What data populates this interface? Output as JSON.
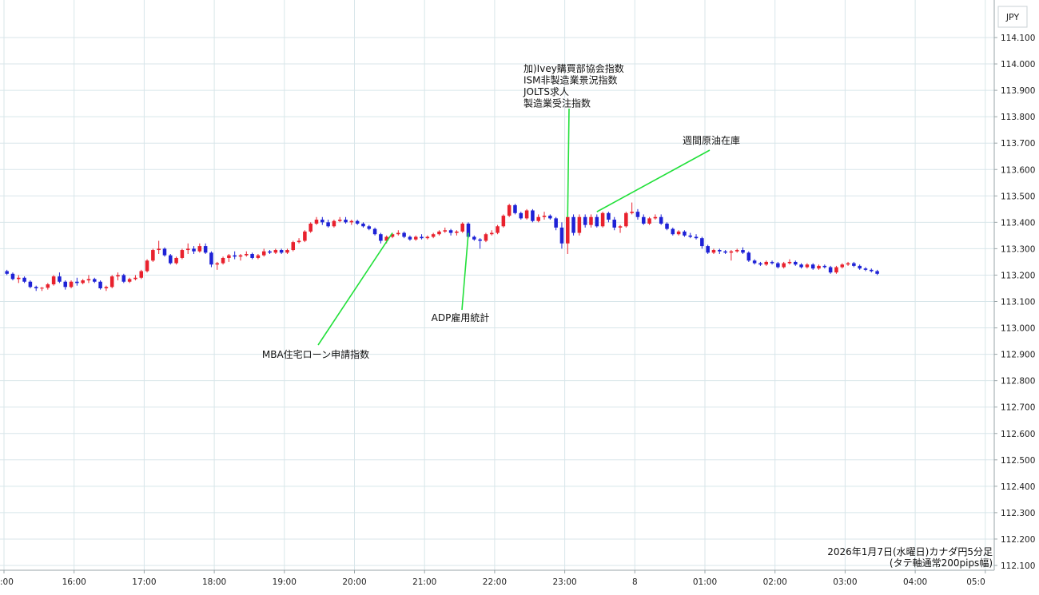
{
  "colors": {
    "up": "#e8212d",
    "down": "#1e22d6",
    "grid": "#d8e6ea",
    "annotation_line": "#22e03a"
  },
  "chart_data": {
    "type": "candlestick",
    "currency_label": "JPY",
    "info_lines": [
      "2026年1月7日(水曜日)カナダ円5分足",
      "(タテ軸通常200pips幅)"
    ],
    "ylim": [
      112.1,
      114.1
    ],
    "y_ticks": [
      "114.100",
      "114.000",
      "113.900",
      "113.800",
      "113.700",
      "113.600",
      "113.500",
      "113.400",
      "113.300",
      "113.200",
      "113.100",
      "113.000",
      "112.900",
      "112.800",
      "112.700",
      "112.600",
      "112.500",
      "112.400",
      "112.300",
      "112.200",
      "112.100"
    ],
    "x_ticks": [
      ":00",
      "16:00",
      "17:00",
      "18:00",
      "19:00",
      "20:00",
      "21:00",
      "22:00",
      "23:00",
      "8",
      "01:00",
      "02:00",
      "03:00",
      "04:00",
      "05:0"
    ],
    "candles": [
      [
        113.215,
        113.22,
        113.2,
        113.205
      ],
      [
        113.205,
        113.21,
        113.18,
        113.185
      ],
      [
        113.185,
        113.2,
        113.17,
        113.19
      ],
      [
        113.19,
        113.195,
        113.17,
        113.175
      ],
      [
        113.175,
        113.18,
        113.15,
        113.155
      ],
      [
        113.155,
        113.16,
        113.14,
        113.15
      ],
      [
        113.15,
        113.155,
        113.14,
        113.152
      ],
      [
        113.152,
        113.17,
        113.145,
        113.165
      ],
      [
        113.165,
        113.2,
        113.16,
        113.195
      ],
      [
        113.195,
        113.21,
        113.17,
        113.175
      ],
      [
        113.175,
        113.18,
        113.145,
        113.155
      ],
      [
        113.155,
        113.18,
        113.15,
        113.175
      ],
      [
        113.175,
        113.19,
        113.16,
        113.17
      ],
      [
        113.17,
        113.185,
        113.165,
        113.18
      ],
      [
        113.18,
        113.2,
        113.17,
        113.185
      ],
      [
        113.185,
        113.19,
        113.17,
        113.175
      ],
      [
        113.175,
        113.18,
        113.145,
        113.15
      ],
      [
        113.15,
        113.16,
        113.14,
        113.155
      ],
      [
        113.155,
        113.2,
        113.15,
        113.195
      ],
      [
        113.195,
        113.21,
        113.18,
        113.2
      ],
      [
        113.2,
        113.205,
        113.17,
        113.175
      ],
      [
        113.175,
        113.19,
        113.17,
        113.185
      ],
      [
        113.185,
        113.2,
        113.18,
        113.19
      ],
      [
        113.19,
        113.22,
        113.185,
        113.215
      ],
      [
        113.215,
        113.26,
        113.21,
        113.255
      ],
      [
        113.255,
        113.3,
        113.25,
        113.295
      ],
      [
        113.295,
        113.33,
        113.28,
        113.3
      ],
      [
        113.3,
        113.305,
        113.27,
        113.275
      ],
      [
        113.275,
        113.28,
        113.24,
        113.245
      ],
      [
        113.245,
        113.27,
        113.24,
        113.265
      ],
      [
        113.265,
        113.3,
        113.26,
        113.295
      ],
      [
        113.295,
        113.32,
        113.28,
        113.3
      ],
      [
        113.3,
        113.31,
        113.28,
        113.29
      ],
      [
        113.29,
        113.32,
        113.285,
        113.31
      ],
      [
        113.31,
        113.32,
        113.28,
        113.285
      ],
      [
        113.285,
        113.29,
        113.23,
        113.24
      ],
      [
        113.24,
        113.25,
        113.22,
        113.245
      ],
      [
        113.245,
        113.27,
        113.24,
        113.265
      ],
      [
        113.265,
        113.28,
        113.25,
        113.275
      ],
      [
        113.275,
        113.29,
        113.26,
        113.27
      ],
      [
        113.27,
        113.28,
        113.255,
        113.275
      ],
      [
        113.275,
        113.29,
        113.27,
        113.28
      ],
      [
        113.28,
        113.285,
        113.26,
        113.265
      ],
      [
        113.265,
        113.28,
        113.26,
        113.275
      ],
      [
        113.275,
        113.3,
        113.27,
        113.29
      ],
      [
        113.29,
        113.295,
        113.28,
        113.285
      ],
      [
        113.285,
        113.3,
        113.28,
        113.295
      ],
      [
        113.295,
        113.3,
        113.28,
        113.285
      ],
      [
        113.285,
        113.3,
        113.28,
        113.295
      ],
      [
        113.295,
        113.33,
        113.29,
        113.325
      ],
      [
        113.325,
        113.34,
        113.32,
        113.33
      ],
      [
        113.33,
        113.37,
        113.325,
        113.365
      ],
      [
        113.365,
        113.4,
        113.36,
        113.395
      ],
      [
        113.395,
        113.42,
        113.39,
        113.41
      ],
      [
        113.41,
        113.42,
        113.39,
        113.4
      ],
      [
        113.4,
        113.41,
        113.38,
        113.385
      ],
      [
        113.385,
        113.41,
        113.38,
        113.405
      ],
      [
        113.405,
        113.42,
        113.4,
        113.41
      ],
      [
        113.41,
        113.42,
        113.395,
        113.4
      ],
      [
        113.4,
        113.41,
        113.39,
        113.405
      ],
      [
        113.405,
        113.41,
        113.39,
        113.395
      ],
      [
        113.395,
        113.4,
        113.38,
        113.385
      ],
      [
        113.385,
        113.39,
        113.37,
        113.375
      ],
      [
        113.375,
        113.38,
        113.35,
        113.355
      ],
      [
        113.355,
        113.36,
        113.32,
        113.33
      ],
      [
        113.33,
        113.35,
        113.32,
        113.345
      ],
      [
        113.345,
        113.36,
        113.34,
        113.355
      ],
      [
        113.355,
        113.37,
        113.35,
        113.36
      ],
      [
        113.36,
        113.365,
        113.34,
        113.345
      ],
      [
        113.345,
        113.35,
        113.33,
        113.335
      ],
      [
        113.335,
        113.35,
        113.33,
        113.345
      ],
      [
        113.345,
        113.355,
        113.335,
        113.34
      ],
      [
        113.34,
        113.35,
        113.335,
        113.345
      ],
      [
        113.345,
        113.36,
        113.34,
        113.355
      ],
      [
        113.355,
        113.37,
        113.35,
        113.365
      ],
      [
        113.365,
        113.38,
        113.36,
        113.37
      ],
      [
        113.37,
        113.375,
        113.35,
        113.36
      ],
      [
        113.36,
        113.37,
        113.35,
        113.365
      ],
      [
        113.365,
        113.4,
        113.36,
        113.395
      ],
      [
        113.395,
        113.4,
        113.34,
        113.345
      ],
      [
        113.345,
        113.35,
        113.33,
        113.335
      ],
      [
        113.335,
        113.34,
        113.3,
        113.33
      ],
      [
        113.33,
        113.36,
        113.325,
        113.355
      ],
      [
        113.355,
        113.37,
        113.35,
        113.36
      ],
      [
        113.36,
        113.39,
        113.355,
        113.385
      ],
      [
        113.385,
        113.43,
        113.38,
        113.425
      ],
      [
        113.425,
        113.47,
        113.42,
        113.465
      ],
      [
        113.465,
        113.47,
        113.43,
        113.435
      ],
      [
        113.435,
        113.44,
        113.41,
        113.415
      ],
      [
        113.415,
        113.45,
        113.41,
        113.445
      ],
      [
        113.445,
        113.45,
        113.4,
        113.405
      ],
      [
        113.405,
        113.43,
        113.4,
        113.42
      ],
      [
        113.42,
        113.44,
        113.41,
        113.425
      ],
      [
        113.425,
        113.43,
        113.41,
        113.415
      ],
      [
        113.415,
        113.42,
        113.37,
        113.38
      ],
      [
        113.38,
        113.4,
        113.3,
        113.32
      ],
      [
        113.32,
        113.43,
        113.28,
        113.42
      ],
      [
        113.42,
        113.43,
        113.35,
        113.36
      ],
      [
        113.36,
        113.43,
        113.35,
        113.42
      ],
      [
        113.42,
        113.43,
        113.38,
        113.39
      ],
      [
        113.39,
        113.43,
        113.38,
        113.42
      ],
      [
        113.42,
        113.43,
        113.38,
        113.385
      ],
      [
        113.385,
        113.44,
        113.38,
        113.435
      ],
      [
        113.435,
        113.44,
        113.4,
        113.41
      ],
      [
        113.41,
        113.42,
        113.37,
        113.38
      ],
      [
        113.38,
        113.39,
        113.36,
        113.385
      ],
      [
        113.385,
        113.44,
        113.38,
        113.435
      ],
      [
        113.435,
        113.475,
        113.43,
        113.44
      ],
      [
        113.44,
        113.45,
        113.41,
        113.42
      ],
      [
        113.42,
        113.43,
        113.39,
        113.395
      ],
      [
        113.395,
        113.42,
        113.39,
        113.415
      ],
      [
        113.415,
        113.43,
        113.41,
        113.42
      ],
      [
        113.42,
        113.43,
        113.39,
        113.395
      ],
      [
        113.395,
        113.4,
        113.37,
        113.375
      ],
      [
        113.375,
        113.38,
        113.35,
        113.355
      ],
      [
        113.355,
        113.37,
        113.35,
        113.365
      ],
      [
        113.365,
        113.37,
        113.345,
        113.35
      ],
      [
        113.35,
        113.36,
        113.34,
        113.345
      ],
      [
        113.345,
        113.355,
        113.335,
        113.34
      ],
      [
        113.34,
        113.345,
        113.3,
        113.31
      ],
      [
        113.31,
        113.315,
        113.28,
        113.285
      ],
      [
        113.285,
        113.3,
        113.28,
        113.295
      ],
      [
        113.295,
        113.3,
        113.28,
        113.29
      ],
      [
        113.29,
        113.295,
        113.28,
        113.285
      ],
      [
        113.285,
        113.295,
        113.255,
        113.29
      ],
      [
        113.29,
        113.3,
        113.285,
        113.295
      ],
      [
        113.295,
        113.305,
        113.28,
        113.285
      ],
      [
        113.285,
        113.29,
        113.25,
        113.255
      ],
      [
        113.255,
        113.26,
        113.24,
        113.245
      ],
      [
        113.245,
        113.25,
        113.235,
        113.24
      ],
      [
        113.24,
        113.255,
        113.235,
        113.25
      ],
      [
        113.25,
        113.255,
        113.24,
        113.245
      ],
      [
        113.245,
        113.25,
        113.225,
        113.23
      ],
      [
        113.23,
        113.25,
        113.225,
        113.245
      ],
      [
        113.245,
        113.26,
        113.24,
        113.25
      ],
      [
        113.25,
        113.255,
        113.235,
        113.24
      ],
      [
        113.24,
        113.245,
        113.225,
        113.23
      ],
      [
        113.23,
        113.245,
        113.225,
        113.24
      ],
      [
        113.24,
        113.245,
        113.22,
        113.225
      ],
      [
        113.225,
        113.24,
        113.22,
        113.235
      ],
      [
        113.235,
        113.24,
        113.225,
        113.23
      ],
      [
        113.23,
        113.235,
        113.205,
        113.21
      ],
      [
        113.21,
        113.235,
        113.205,
        113.23
      ],
      [
        113.23,
        113.245,
        113.225,
        113.24
      ],
      [
        113.24,
        113.25,
        113.235,
        113.245
      ],
      [
        113.245,
        113.25,
        113.23,
        113.235
      ],
      [
        113.235,
        113.24,
        113.22,
        113.225
      ],
      [
        113.225,
        113.23,
        113.215,
        113.22
      ],
      [
        113.22,
        113.225,
        113.21,
        113.215
      ],
      [
        113.215,
        113.22,
        113.2,
        113.205
      ]
    ],
    "annotations": [
      {
        "label": "MBA住宅ローン申請指数",
        "candle_index": 66,
        "price": 113.36
      },
      {
        "label": "ADP雇用統計",
        "candle_index": 79,
        "price": 113.36
      },
      {
        "label": "加)Ivey購買部協会指数",
        "candle_index": 96,
        "price": 113.42,
        "group_lines": [
          "加)Ivey購買部協会指数",
          "ISM非製造業景況指数",
          "JOLTS求人",
          "製造業受注指数"
        ]
      },
      {
        "label": "週間原油在庫",
        "candle_index": 101,
        "price": 113.44
      }
    ]
  }
}
